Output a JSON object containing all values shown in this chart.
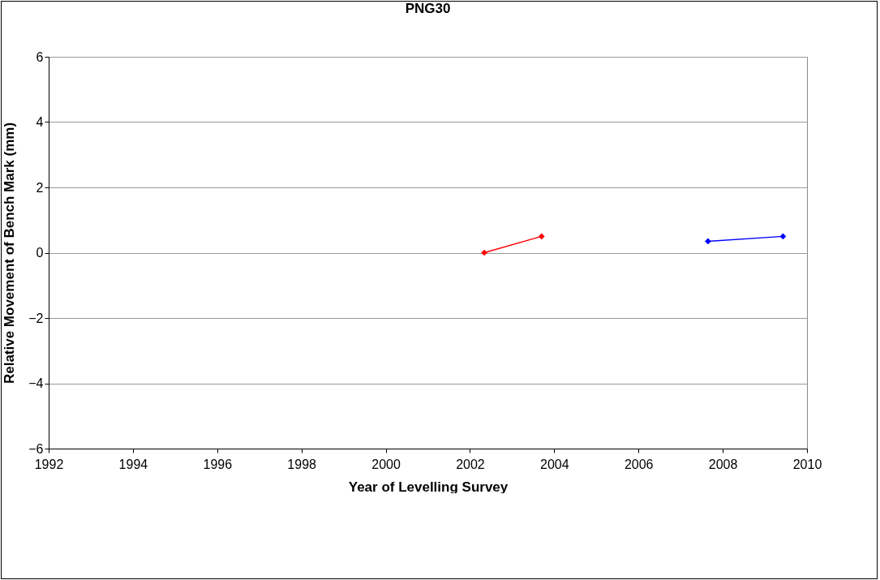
{
  "chart_data": {
    "type": "line",
    "title": "PNG30",
    "xlabel": "Year of Levelling Survey",
    "ylabel": "Relative Movement of Bench Mark (mm)",
    "series": [
      {
        "color": "#ff0000",
        "x": [
          2002.34,
          2003.7
        ],
        "values": [
          0,
          0.5
        ]
      },
      {
        "color": "#0000ff",
        "x": [
          2007.65,
          2009.43
        ],
        "values": [
          0.35,
          0.5
        ]
      }
    ],
    "xlim": [
      1992,
      2010
    ],
    "xticks": [
      1992,
      1994,
      1996,
      1998,
      2000,
      2002,
      2004,
      2006,
      2008,
      2010
    ],
    "ylim": [
      -6,
      6
    ],
    "yticks": [
      -6,
      -4,
      -2,
      0,
      2,
      4,
      6
    ],
    "grid": "y",
    "marker": "diamond",
    "line_style": "solid",
    "legend": false
  }
}
